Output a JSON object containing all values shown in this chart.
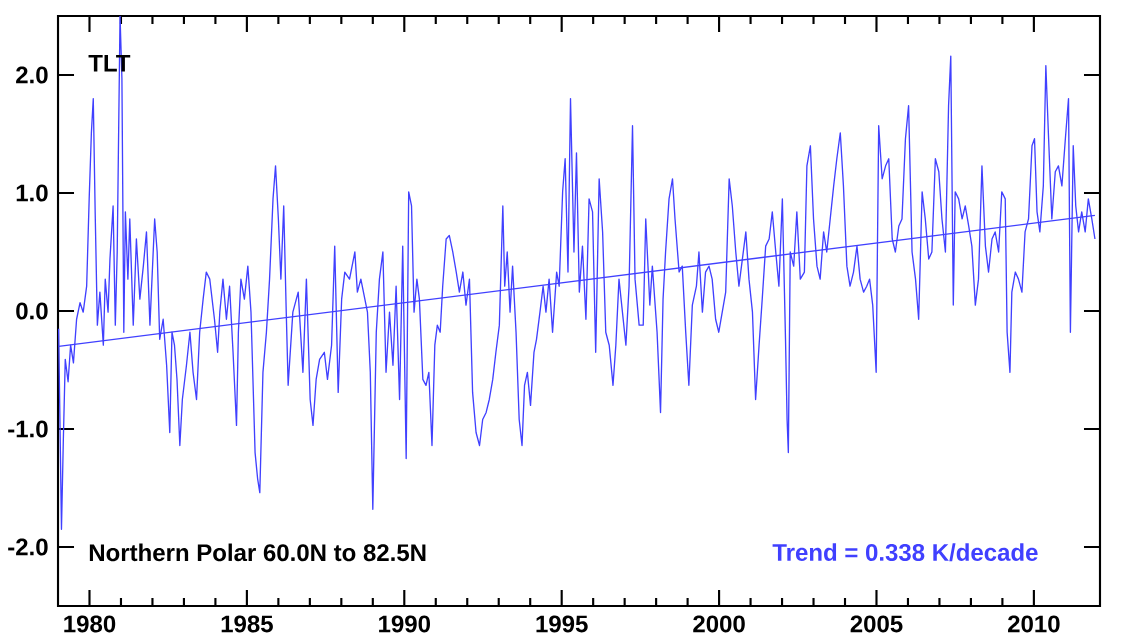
{
  "chart_data": {
    "type": "line",
    "annotations": [
      "TLT",
      "Northern Polar  60.0N to  82.5N",
      "Trend =  0.338 K/decade"
    ],
    "xlim": [
      1979,
      2012.1
    ],
    "ylim": [
      -2.5,
      2.5
    ],
    "xticks": [
      1980,
      1985,
      1990,
      1995,
      2000,
      2005,
      2010
    ],
    "yticks": [
      {
        "value": -2,
        "label": "-2.0"
      },
      {
        "value": -1,
        "label": "-1.0"
      },
      {
        "value": 0,
        "label": "0.0"
      },
      {
        "value": 1,
        "label": "1.0"
      },
      {
        "value": 2,
        "label": "2.0"
      }
    ],
    "grid": false,
    "marker": "none",
    "line_style": "solid",
    "series": [
      {
        "color": "#4040ff",
        "x": [
          1979.02,
          1979.11,
          1979.17,
          1979.23,
          1979.32,
          1979.4,
          1979.49,
          1979.59,
          1979.7,
          1979.8,
          1979.91,
          1979.99,
          1980.06,
          1980.12,
          1980.18,
          1980.25,
          1980.33,
          1980.44,
          1980.5,
          1980.59,
          1980.65,
          1980.75,
          1980.82,
          1980.88,
          1980.97,
          1981.03,
          1981.09,
          1981.14,
          1981.22,
          1981.28,
          1981.39,
          1981.49,
          1981.6,
          1981.71,
          1981.81,
          1981.92,
          1982.07,
          1982.15,
          1982.23,
          1982.34,
          1982.45,
          1982.55,
          1982.62,
          1982.7,
          1982.78,
          1982.87,
          1982.95,
          1983.08,
          1983.19,
          1983.29,
          1983.4,
          1983.5,
          1983.61,
          1983.71,
          1983.82,
          1983.97,
          1984.07,
          1984.14,
          1984.24,
          1984.35,
          1984.45,
          1984.56,
          1984.67,
          1984.73,
          1984.81,
          1984.92,
          1985.03,
          1985.13,
          1985.26,
          1985.34,
          1985.41,
          1985.51,
          1985.62,
          1985.72,
          1985.83,
          1985.91,
          1986.0,
          1986.08,
          1986.17,
          1986.25,
          1986.31,
          1986.46,
          1986.63,
          1986.78,
          1986.89,
          1987.01,
          1987.1,
          1987.2,
          1987.31,
          1987.46,
          1987.56,
          1987.69,
          1987.79,
          1987.9,
          1988.01,
          1988.11,
          1988.26,
          1988.43,
          1988.51,
          1988.62,
          1988.83,
          1988.92,
          1989.0,
          1989.11,
          1989.21,
          1989.32,
          1989.42,
          1989.53,
          1989.64,
          1989.74,
          1989.85,
          1989.95,
          1990.06,
          1990.14,
          1990.23,
          1990.31,
          1990.4,
          1990.48,
          1990.59,
          1990.69,
          1990.78,
          1990.88,
          1990.97,
          1991.05,
          1991.14,
          1991.22,
          1991.33,
          1991.43,
          1991.54,
          1991.65,
          1991.75,
          1991.86,
          1991.96,
          1992.07,
          1992.17,
          1992.28,
          1992.39,
          1992.49,
          1992.6,
          1992.7,
          1992.81,
          1992.91,
          1993.02,
          1993.13,
          1993.19,
          1993.27,
          1993.36,
          1993.44,
          1993.55,
          1993.65,
          1993.74,
          1993.82,
          1993.91,
          1994.01,
          1994.12,
          1994.2,
          1994.31,
          1994.41,
          1994.5,
          1994.6,
          1994.71,
          1994.84,
          1994.92,
          1995.03,
          1995.11,
          1995.2,
          1995.28,
          1995.39,
          1995.47,
          1995.56,
          1995.66,
          1995.77,
          1995.87,
          1995.98,
          1996.08,
          1996.19,
          1996.3,
          1996.4,
          1996.51,
          1996.63,
          1996.72,
          1996.82,
          1996.93,
          1997.04,
          1997.14,
          1997.25,
          1997.33,
          1997.46,
          1997.59,
          1997.67,
          1997.8,
          1997.88,
          1998.03,
          1998.14,
          1998.22,
          1998.3,
          1998.41,
          1998.52,
          1998.6,
          1998.73,
          1998.83,
          1998.94,
          1999.04,
          1999.15,
          1999.28,
          1999.36,
          1999.47,
          1999.57,
          1999.68,
          1999.78,
          1999.89,
          1999.99,
          2000.21,
          2000.32,
          2000.42,
          2000.53,
          2000.63,
          2000.74,
          2000.85,
          2000.95,
          2001.06,
          2001.16,
          2001.27,
          2001.37,
          2001.48,
          2001.59,
          2001.69,
          2001.8,
          2001.9,
          2002.01,
          2002.11,
          2002.16,
          2002.2,
          2002.26,
          2002.37,
          2002.47,
          2002.58,
          2002.71,
          2002.79,
          2002.9,
          2003.0,
          2003.11,
          2003.21,
          2003.32,
          2003.42,
          2003.53,
          2003.64,
          2003.74,
          2003.85,
          2003.95,
          2004.06,
          2004.16,
          2004.27,
          2004.38,
          2004.48,
          2004.59,
          2004.69,
          2004.78,
          2004.88,
          2004.99,
          2005.07,
          2005.18,
          2005.29,
          2005.39,
          2005.5,
          2005.6,
          2005.71,
          2005.81,
          2005.92,
          2006.02,
          2006.13,
          2006.24,
          2006.34,
          2006.45,
          2006.55,
          2006.66,
          2006.76,
          2006.87,
          2006.98,
          2007.08,
          2007.19,
          2007.29,
          2007.36,
          2007.44,
          2007.5,
          2007.61,
          2007.72,
          2007.82,
          2007.93,
          2008.03,
          2008.14,
          2008.24,
          2008.35,
          2008.46,
          2008.56,
          2008.67,
          2008.77,
          2008.88,
          2008.98,
          2009.09,
          2009.15,
          2009.24,
          2009.3,
          2009.41,
          2009.51,
          2009.62,
          2009.72,
          2009.83,
          2009.94,
          2010.02,
          2010.1,
          2010.19,
          2010.3,
          2010.38,
          2010.46,
          2010.57,
          2010.68,
          2010.78,
          2010.89,
          2011.0,
          2011.1,
          2011.16,
          2011.25,
          2011.33,
          2011.42,
          2011.52,
          2011.63,
          2011.73,
          2011.84,
          2011.94
        ],
        "values": [
          -0.15,
          -1.85,
          -1.08,
          -0.41,
          -0.6,
          -0.29,
          -0.44,
          -0.07,
          0.07,
          -0.01,
          0.21,
          0.95,
          1.51,
          1.8,
          0.84,
          -0.12,
          0.16,
          -0.29,
          0.27,
          -0.01,
          0.44,
          0.89,
          -0.12,
          0.5,
          2.5,
          1.97,
          -0.18,
          0.84,
          0.27,
          0.78,
          -0.12,
          0.61,
          0.1,
          0.38,
          0.67,
          -0.12,
          0.78,
          0.5,
          -0.24,
          -0.07,
          -0.46,
          -1.03,
          -0.18,
          -0.29,
          -0.58,
          -1.14,
          -0.75,
          -0.46,
          -0.18,
          -0.52,
          -0.75,
          -0.18,
          0.1,
          0.33,
          0.27,
          -0.07,
          -0.35,
          -0.01,
          0.27,
          -0.07,
          0.21,
          -0.35,
          -0.97,
          -0.18,
          0.27,
          0.1,
          0.38,
          -0.01,
          -1.2,
          -1.42,
          -1.54,
          -0.52,
          -0.18,
          0.27,
          0.95,
          1.23,
          0.78,
          0.27,
          0.89,
          -0.01,
          -0.63,
          -0.01,
          0.16,
          -0.52,
          0.27,
          -0.75,
          -0.97,
          -0.58,
          -0.41,
          -0.35,
          -0.58,
          -0.29,
          0.55,
          -0.69,
          0.1,
          0.33,
          0.27,
          0.5,
          0.16,
          0.27,
          -0.01,
          -0.52,
          -1.68,
          -0.18,
          0.27,
          0.5,
          -0.52,
          -0.01,
          -0.46,
          0.21,
          -0.75,
          0.55,
          -1.25,
          1.01,
          0.89,
          -0.01,
          0.27,
          0.1,
          -0.58,
          -0.63,
          -0.52,
          -1.14,
          -0.29,
          -0.12,
          -0.18,
          0.21,
          0.61,
          0.64,
          0.5,
          0.33,
          0.16,
          0.33,
          0.05,
          0.27,
          -0.69,
          -1.03,
          -1.14,
          -0.92,
          -0.86,
          -0.75,
          -0.58,
          -0.35,
          -0.12,
          0.89,
          0.21,
          0.5,
          -0.01,
          0.38,
          -0.18,
          -0.92,
          -1.14,
          -0.63,
          -0.52,
          -0.8,
          -0.35,
          -0.24,
          -0.01,
          0.21,
          -0.01,
          0.27,
          -0.18,
          0.33,
          0.21,
          1.01,
          1.29,
          0.33,
          1.8,
          0.5,
          1.34,
          0.16,
          0.55,
          -0.07,
          0.95,
          0.84,
          -0.35,
          1.12,
          0.67,
          -0.18,
          -0.29,
          -0.63,
          -0.29,
          0.27,
          -0.01,
          -0.29,
          0.21,
          1.57,
          0.27,
          -0.12,
          -0.12,
          0.78,
          0.05,
          0.38,
          -0.18,
          -0.86,
          0.1,
          0.5,
          0.95,
          1.12,
          0.78,
          0.33,
          0.38,
          -0.18,
          -0.63,
          0.05,
          0.21,
          0.5,
          -0.01,
          0.33,
          0.38,
          0.27,
          -0.07,
          -0.18,
          0.16,
          1.12,
          0.89,
          0.5,
          0.21,
          0.44,
          0.67,
          0.27,
          -0.01,
          -0.75,
          -0.29,
          0.1,
          0.55,
          0.61,
          0.84,
          0.5,
          0.21,
          0.95,
          -0.24,
          -0.92,
          -1.2,
          0.5,
          0.38,
          0.84,
          0.27,
          0.33,
          1.23,
          1.4,
          0.78,
          0.38,
          0.27,
          0.67,
          0.5,
          0.78,
          1.06,
          1.29,
          1.51,
          1.06,
          0.38,
          0.21,
          0.33,
          0.55,
          0.27,
          0.16,
          0.21,
          0.27,
          0.05,
          -0.52,
          1.57,
          1.12,
          1.23,
          1.29,
          0.61,
          0.5,
          0.72,
          0.78,
          1.46,
          1.74,
          0.5,
          0.27,
          -0.07,
          1.01,
          0.78,
          0.44,
          0.5,
          1.29,
          1.18,
          0.78,
          0.5,
          1.74,
          2.16,
          0.05,
          1.01,
          0.95,
          0.78,
          0.89,
          0.72,
          0.55,
          0.05,
          0.27,
          1.23,
          0.55,
          0.33,
          0.61,
          0.67,
          0.5,
          1.01,
          0.95,
          -0.18,
          -0.52,
          0.16,
          0.33,
          0.27,
          0.16,
          0.67,
          0.78,
          1.4,
          1.46,
          0.84,
          0.67,
          1.06,
          2.08,
          1.51,
          0.78,
          1.18,
          1.23,
          1.06,
          1.46,
          1.8,
          -0.18,
          1.4,
          0.89,
          0.67,
          0.84,
          0.67,
          0.95,
          0.78,
          0.61
        ]
      },
      {
        "color": "#4040ff",
        "type": "line",
        "x": [
          1979.02,
          2011.94
        ],
        "values": [
          -0.3,
          0.81
        ]
      }
    ]
  }
}
